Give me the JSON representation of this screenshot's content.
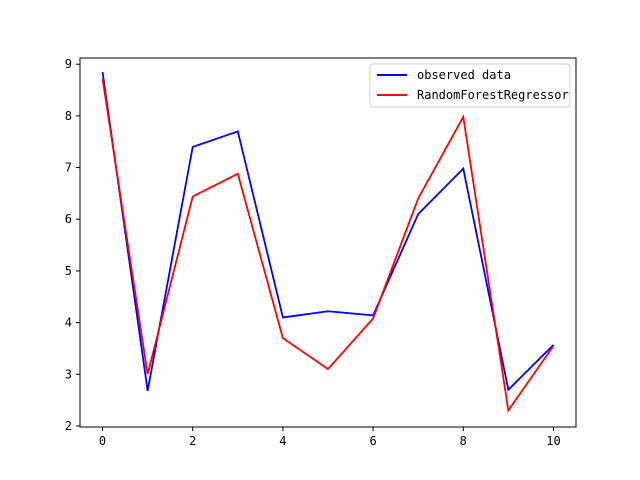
{
  "chart_data": {
    "type": "line",
    "title": "",
    "xlabel": "",
    "ylabel": "",
    "xlim": [
      -0.5,
      10.5
    ],
    "ylim": [
      1.98,
      9.12
    ],
    "x": [
      0,
      1,
      2,
      3,
      4,
      5,
      6,
      7,
      8,
      9,
      10
    ],
    "xticks": [
      0,
      2,
      4,
      6,
      8,
      10
    ],
    "yticks": [
      2,
      3,
      4,
      5,
      6,
      7,
      8,
      9
    ],
    "grid": false,
    "legend_position": "top-right",
    "series": [
      {
        "name": "observed data",
        "color": "#0000ff",
        "values": [
          8.85,
          2.68,
          7.4,
          7.7,
          4.1,
          4.22,
          4.14,
          6.1,
          6.98,
          2.7,
          3.57
        ]
      },
      {
        "name": "RandomForestRegressor",
        "color": "#ff0000",
        "values": [
          8.72,
          3.0,
          6.44,
          6.88,
          3.7,
          3.1,
          4.08,
          6.4,
          7.98,
          2.3,
          3.55
        ]
      }
    ]
  }
}
